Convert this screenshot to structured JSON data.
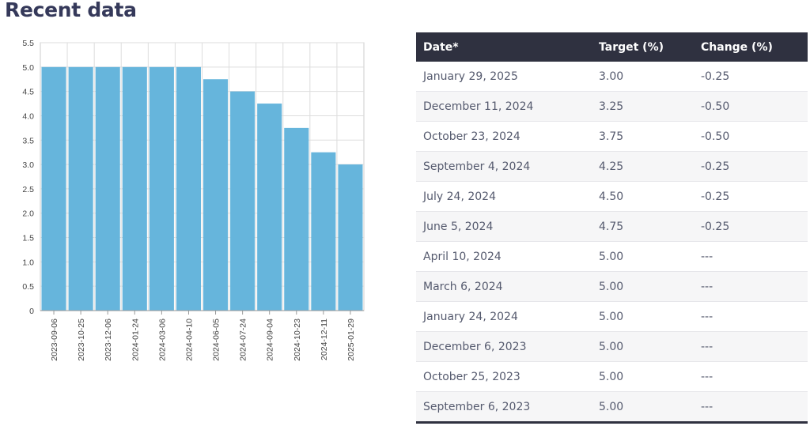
{
  "title": "Recent data",
  "chart_data": {
    "type": "bar",
    "categories": [
      "2023-09-06",
      "2023-10-25",
      "2023-12-06",
      "2024-01-24",
      "2024-03-06",
      "2024-04-10",
      "2024-06-05",
      "2024-07-24",
      "2024-09-04",
      "2024-10-23",
      "2024-12-11",
      "2025-01-29"
    ],
    "values": [
      5.0,
      5.0,
      5.0,
      5.0,
      5.0,
      5.0,
      4.75,
      4.5,
      4.25,
      3.75,
      3.25,
      3.0
    ],
    "yticks": [
      "0",
      "0.5",
      "1.0",
      "1.5",
      "2.0",
      "2.5",
      "3.0",
      "3.5",
      "4.0",
      "4.5",
      "5.0",
      "5.5"
    ],
    "ylim": [
      0,
      5.5
    ],
    "grid": true,
    "bar_color": "#66b5dc"
  },
  "table": {
    "headers": [
      "Date*",
      "Target (%)",
      "Change (%)"
    ],
    "rows": [
      [
        "January 29, 2025",
        "3.00",
        "-0.25"
      ],
      [
        "December 11, 2024",
        "3.25",
        "-0.50"
      ],
      [
        "October 23, 2024",
        "3.75",
        "-0.50"
      ],
      [
        "September 4, 2024",
        "4.25",
        "-0.25"
      ],
      [
        "July 24, 2024",
        "4.50",
        "-0.25"
      ],
      [
        "June 5, 2024",
        "4.75",
        "-0.25"
      ],
      [
        "April 10, 2024",
        "5.00",
        "---"
      ],
      [
        "March 6, 2024",
        "5.00",
        "---"
      ],
      [
        "January 24, 2024",
        "5.00",
        "---"
      ],
      [
        "December 6, 2023",
        "5.00",
        "---"
      ],
      [
        "October 25, 2023",
        "5.00",
        "---"
      ],
      [
        "September 6, 2023",
        "5.00",
        "---"
      ]
    ]
  }
}
